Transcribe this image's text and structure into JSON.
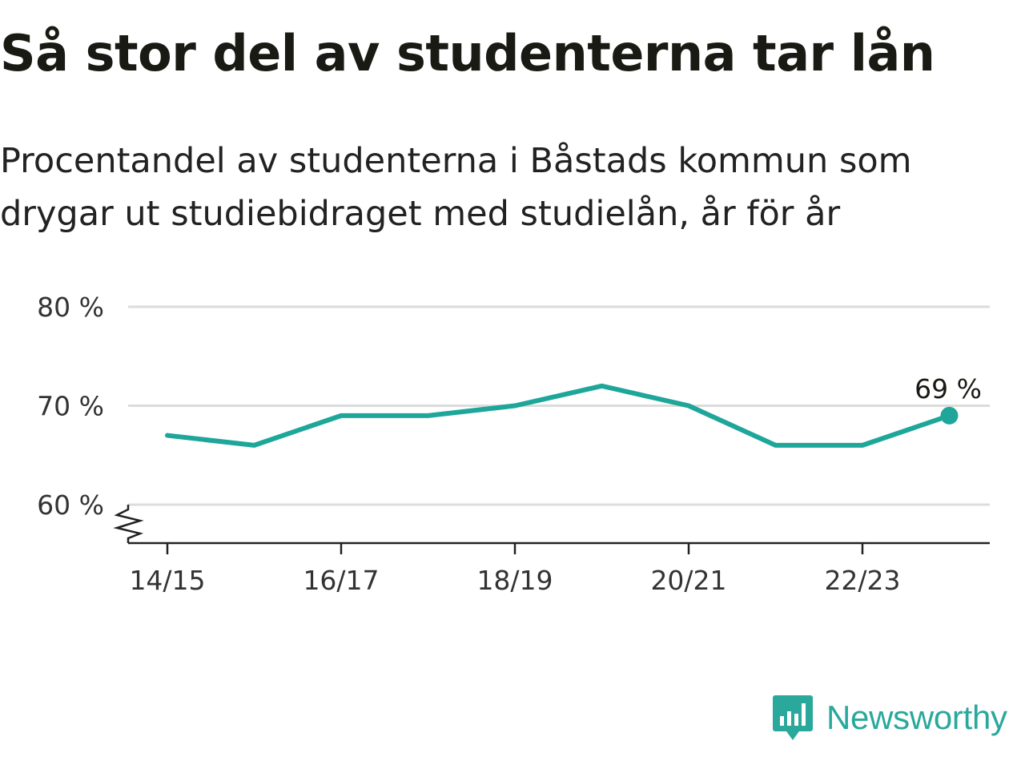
{
  "header": {
    "title": "Så stor del av studenterna tar lån",
    "subtitle": "Procentandel av studenterna i Båstads kommun som drygar ut studiebidraget med studielån, år för år"
  },
  "brand": {
    "name": "Newsworthy",
    "icon": "newsworthy-logo-icon"
  },
  "colors": {
    "line": "#1ea69a",
    "grid": "#dcdcdc",
    "axis": "#222222"
  },
  "chart_data": {
    "type": "line",
    "title": "Så stor del av studenterna tar lån",
    "x": [
      "14/15",
      "15/16",
      "16/17",
      "17/18",
      "18/19",
      "19/20",
      "20/21",
      "21/22",
      "22/23",
      "23/24"
    ],
    "x_tick_labels": [
      "14/15",
      "16/17",
      "18/19",
      "20/21",
      "22/23"
    ],
    "series": [
      {
        "values": [
          67,
          66,
          69,
          69,
          70,
          72,
          70,
          66,
          66,
          69
        ]
      }
    ],
    "yticks": [
      60,
      70,
      80
    ],
    "ytick_labels": [
      "60 %",
      "70 %",
      "80 %"
    ],
    "ylim": [
      56,
      80
    ],
    "y_axis_break": true,
    "grid": true,
    "end_label": "69 %"
  }
}
